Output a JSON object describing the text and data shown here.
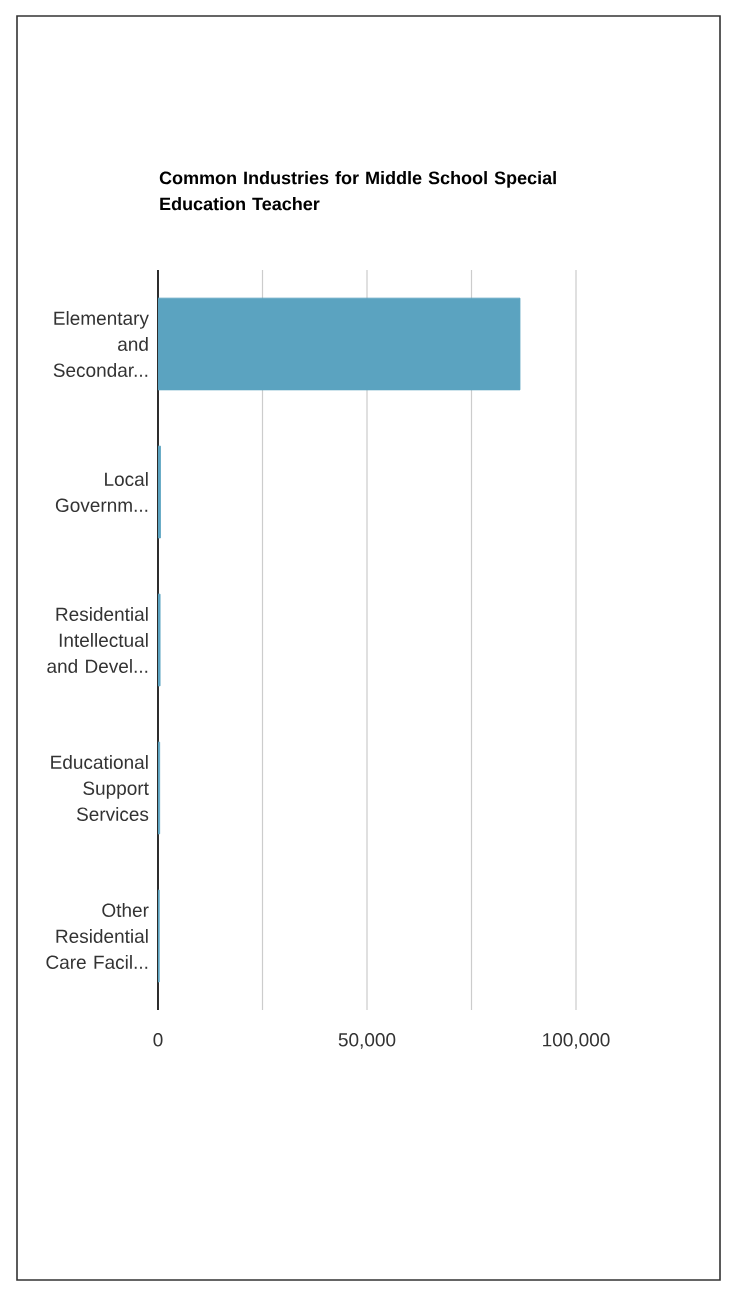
{
  "chart_data": {
    "type": "bar",
    "orientation": "horizontal",
    "title": "Common Industries for Middle School Special Education Teacher",
    "categories": [
      "Elementary and Secondar...",
      "Local Governm...",
      "Residential Intellectual and Devel...",
      "Educational Support Services",
      "Other Residential Care Facil..."
    ],
    "values": [
      86600,
      600,
      500,
      400,
      300
    ],
    "color": "#5ba3c0",
    "xlim": [
      0,
      100000
    ],
    "xticks": [
      0,
      {
        "value": 25000,
        "label": null
      },
      {
        "value": 50000,
        "label": "50,000"
      },
      {
        "value": 75000,
        "label": null
      },
      {
        "value": 100000,
        "label": "100,000"
      }
    ],
    "grid": "x"
  }
}
